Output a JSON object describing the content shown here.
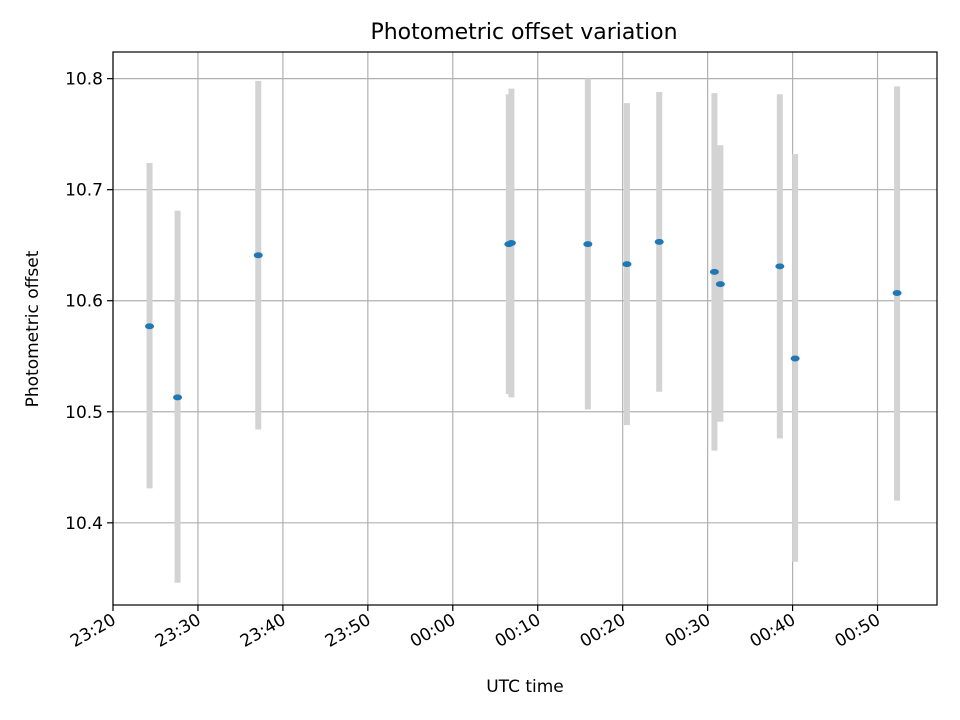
{
  "chart_data": {
    "type": "scatter",
    "title": "Photometric offset variation",
    "xlabel": "UTC time",
    "ylabel": "Photometric offset",
    "x_ticks": [
      "23:20",
      "23:30",
      "23:40",
      "23:50",
      "00:00",
      "00:10",
      "00:20",
      "00:30",
      "00:40",
      "00:50"
    ],
    "y_ticks": [
      "10.4",
      "10.5",
      "10.6",
      "10.7",
      "10.8"
    ],
    "xlim": [
      "23:20",
      "00:57"
    ],
    "ylim": [
      10.326,
      10.824
    ],
    "grid": true,
    "colors": {
      "point": "#1f77b4",
      "errorbar": "#d3d3d3",
      "grid": "#b0b0b0"
    },
    "points": [
      {
        "x": "23:24.3",
        "y": 10.577,
        "lo": 10.431,
        "hi": 10.724
      },
      {
        "x": "23:27.6",
        "y": 10.513,
        "lo": 10.346,
        "hi": 10.681
      },
      {
        "x": "23:37.1",
        "y": 10.641,
        "lo": 10.484,
        "hi": 10.798
      },
      {
        "x": "00:06.6",
        "y": 10.651,
        "lo": 10.516,
        "hi": 10.786
      },
      {
        "x": "00:06.9",
        "y": 10.652,
        "lo": 10.513,
        "hi": 10.791
      },
      {
        "x": "00:15.9",
        "y": 10.651,
        "lo": 10.502,
        "hi": 10.8
      },
      {
        "x": "00:20.5",
        "y": 10.633,
        "lo": 10.488,
        "hi": 10.778
      },
      {
        "x": "00:24.3",
        "y": 10.653,
        "lo": 10.518,
        "hi": 10.788
      },
      {
        "x": "00:30.8",
        "y": 10.626,
        "lo": 10.465,
        "hi": 10.787
      },
      {
        "x": "00:31.5",
        "y": 10.615,
        "lo": 10.491,
        "hi": 10.74
      },
      {
        "x": "00:38.5",
        "y": 10.631,
        "lo": 10.476,
        "hi": 10.786
      },
      {
        "x": "00:40.3",
        "y": 10.548,
        "lo": 10.365,
        "hi": 10.732
      },
      {
        "x": "00:52.3",
        "y": 10.607,
        "lo": 10.42,
        "hi": 10.793
      }
    ]
  }
}
